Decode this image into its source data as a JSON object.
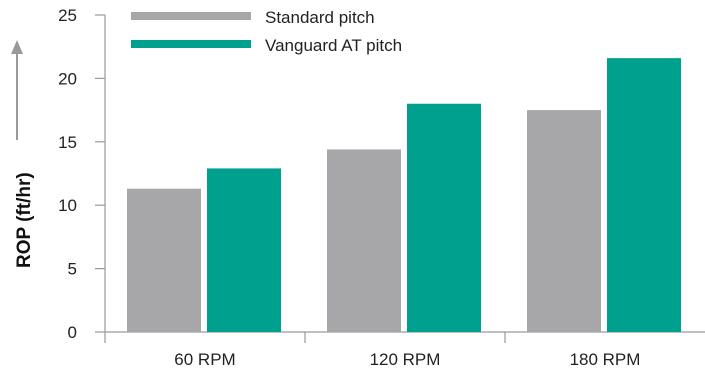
{
  "chart_data": {
    "type": "bar",
    "categories": [
      "60 RPM",
      "120 RPM",
      "180 RPM"
    ],
    "series": [
      {
        "name": "Standard pitch",
        "values": [
          11.3,
          14.4,
          17.5
        ],
        "color": "#a7a7a9"
      },
      {
        "name": "Vanguard AT pitch",
        "values": [
          12.9,
          18.0,
          21.6
        ],
        "color": "#00a08e"
      }
    ],
    "title": "",
    "xlabel": "",
    "ylabel": "ROP (ft/hr)",
    "ylim": [
      0,
      25
    ],
    "yticks": [
      "0",
      "5",
      "10",
      "15",
      "20",
      "25"
    ],
    "grid": false,
    "legend_position": "top-left"
  }
}
